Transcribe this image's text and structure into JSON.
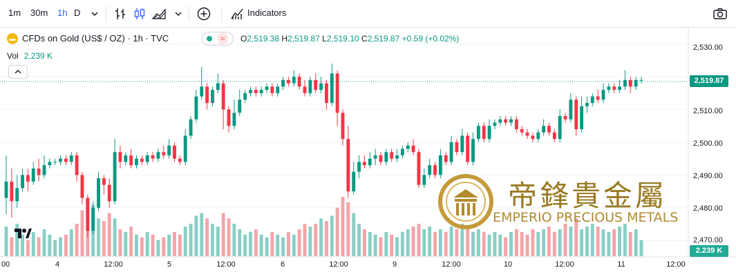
{
  "toolbar": {
    "intervals": [
      "1m",
      "30m",
      "1h",
      "D"
    ],
    "active_interval": "1h",
    "indicators_label": "Indicators"
  },
  "legend": {
    "title": "CFDs on Gold (US$ / OZ) · 1h · TVC",
    "open_key": "O",
    "open": "2,519.38",
    "high_key": "H",
    "high": "2,519.87",
    "low_key": "L",
    "low": "2,519.10",
    "close_key": "C",
    "close": "2,519.87",
    "change": "+0.59 (+0.02%)"
  },
  "volume": {
    "label": "Vol",
    "value": "2.239 K"
  },
  "price_axis": [
    "2,530.00",
    "2,520.00",
    "2,510.00",
    "2,500.00",
    "2,490.00",
    "2,480.00",
    "2,470.00"
  ],
  "current_price": "2,519.87",
  "current_volume": "2.239 K",
  "time_axis": [
    "00",
    "4",
    "12:00",
    "5",
    "12:00",
    "6",
    "12:00",
    "9",
    "12:00",
    "10",
    "12:00",
    "11",
    "12:00"
  ],
  "watermark": {
    "chinese": "帝鋒貴金屬",
    "english": "EMPERIO PRECIOUS METALS"
  },
  "colors": {
    "up": "#089981",
    "down": "#f23645",
    "vol_up": "#89cfc6",
    "vol_down": "#f3a5a9",
    "accent": "#2962ff"
  },
  "chart_data": {
    "type": "candlestick",
    "y_range": [
      2465,
      2535
    ],
    "candles": [
      [
        2483,
        2488,
        2478,
        2496
      ],
      [
        2488,
        2482,
        2477,
        2492
      ],
      [
        2482,
        2486,
        2480,
        2490
      ],
      [
        2486,
        2490,
        2485,
        2492
      ],
      [
        2490,
        2488,
        2485,
        2492
      ],
      [
        2488,
        2492,
        2487,
        2494
      ],
      [
        2492,
        2490,
        2488,
        2495
      ],
      [
        2490,
        2493,
        2489,
        2496
      ],
      [
        2493,
        2494,
        2492,
        2495
      ],
      [
        2494,
        2494,
        2493,
        2495
      ],
      [
        2494,
        2495,
        2493,
        2496
      ],
      [
        2495,
        2494,
        2493,
        2496
      ],
      [
        2494,
        2496,
        2493,
        2497
      ],
      [
        2496,
        2490,
        2488,
        2497
      ],
      [
        2490,
        2483,
        2481,
        2491
      ],
      [
        2483,
        2473,
        2471,
        2484
      ],
      [
        2473,
        2480,
        2472,
        2482
      ],
      [
        2480,
        2489,
        2479,
        2491
      ],
      [
        2489,
        2487,
        2484,
        2490
      ],
      [
        2487,
        2482,
        2480,
        2489
      ],
      [
        2482,
        2497,
        2481,
        2501
      ],
      [
        2497,
        2494,
        2492,
        2499
      ],
      [
        2494,
        2496,
        2493,
        2497
      ],
      [
        2496,
        2493,
        2492,
        2498
      ],
      [
        2493,
        2495,
        2492,
        2496
      ],
      [
        2495,
        2494,
        2493,
        2496
      ],
      [
        2494,
        2496,
        2493,
        2497
      ],
      [
        2496,
        2495,
        2494,
        2497
      ],
      [
        2495,
        2497,
        2494,
        2498
      ],
      [
        2497,
        2496,
        2495,
        2499
      ],
      [
        2496,
        2499,
        2495,
        2501
      ],
      [
        2499,
        2495,
        2494,
        2500
      ],
      [
        2495,
        2494,
        2493,
        2496
      ],
      [
        2494,
        2502,
        2493,
        2504
      ],
      [
        2502,
        2507,
        2501,
        2508
      ],
      [
        2507,
        2514,
        2506,
        2516
      ],
      [
        2514,
        2517,
        2513,
        2523
      ],
      [
        2517,
        2512,
        2510,
        2518
      ],
      [
        2512,
        2516,
        2511,
        2517
      ],
      [
        2516,
        2518,
        2515,
        2521
      ],
      [
        2518,
        2510,
        2504,
        2519
      ],
      [
        2510,
        2505,
        2503,
        2511
      ],
      [
        2505,
        2509,
        2504,
        2513
      ],
      [
        2509,
        2513,
        2508,
        2516
      ],
      [
        2513,
        2515,
        2512,
        2516
      ],
      [
        2515,
        2516,
        2514,
        2517
      ],
      [
        2516,
        2515,
        2514,
        2517
      ],
      [
        2515,
        2516,
        2514,
        2517
      ],
      [
        2516,
        2517,
        2515,
        2518
      ],
      [
        2517,
        2515,
        2514,
        2518
      ],
      [
        2515,
        2517,
        2514,
        2518
      ],
      [
        2517,
        2519,
        2516,
        2520
      ],
      [
        2519,
        2518,
        2517,
        2520
      ],
      [
        2518,
        2520,
        2517,
        2522
      ],
      [
        2520,
        2517,
        2516,
        2521
      ],
      [
        2517,
        2515,
        2514,
        2519
      ],
      [
        2515,
        2519,
        2514,
        2520
      ],
      [
        2519,
        2516,
        2515,
        2521
      ],
      [
        2516,
        2518,
        2515,
        2520
      ],
      [
        2518,
        2512,
        2510,
        2519
      ],
      [
        2512,
        2521,
        2511,
        2524
      ],
      [
        2521,
        2509,
        2505,
        2522
      ],
      [
        2509,
        2501,
        2499,
        2510
      ],
      [
        2501,
        2485,
        2483,
        2505
      ],
      [
        2485,
        2491,
        2484,
        2494
      ],
      [
        2491,
        2494,
        2489,
        2496
      ],
      [
        2494,
        2493,
        2492,
        2496
      ],
      [
        2493,
        2495,
        2492,
        2497
      ],
      [
        2495,
        2496,
        2493,
        2498
      ],
      [
        2496,
        2494,
        2493,
        2497
      ],
      [
        2494,
        2497,
        2493,
        2498
      ],
      [
        2497,
        2495,
        2494,
        2498
      ],
      [
        2495,
        2496,
        2494,
        2498
      ],
      [
        2496,
        2498,
        2495,
        2499
      ],
      [
        2498,
        2499,
        2497,
        2500
      ],
      [
        2499,
        2497,
        2496,
        2501
      ],
      [
        2497,
        2487,
        2486,
        2498
      ],
      [
        2487,
        2490,
        2486,
        2492
      ],
      [
        2490,
        2493,
        2489,
        2495
      ],
      [
        2493,
        2490,
        2489,
        2494
      ],
      [
        2490,
        2496,
        2489,
        2498
      ],
      [
        2496,
        2494,
        2493,
        2497
      ],
      [
        2494,
        2500,
        2493,
        2502
      ],
      [
        2500,
        2497,
        2496,
        2501
      ],
      [
        2497,
        2502,
        2496,
        2504
      ],
      [
        2502,
        2494,
        2493,
        2503
      ],
      [
        2494,
        2501,
        2493,
        2503
      ],
      [
        2501,
        2505,
        2500,
        2506
      ],
      [
        2505,
        2501,
        2500,
        2506
      ],
      [
        2501,
        2505,
        2500,
        2507
      ],
      [
        2505,
        2506,
        2504,
        2507
      ],
      [
        2506,
        2507,
        2505,
        2508
      ],
      [
        2507,
        2506,
        2505,
        2508
      ],
      [
        2506,
        2507,
        2505,
        2508
      ],
      [
        2507,
        2504,
        2503,
        2508
      ],
      [
        2504,
        2503,
        2502,
        2505
      ],
      [
        2503,
        2502,
        2501,
        2504
      ],
      [
        2502,
        2501,
        2500,
        2503
      ],
      [
        2501,
        2503,
        2500,
        2504
      ],
      [
        2503,
        2505,
        2502,
        2507
      ],
      [
        2505,
        2503,
        2502,
        2506
      ],
      [
        2503,
        2501,
        2500,
        2504
      ],
      [
        2501,
        2508,
        2500,
        2510
      ],
      [
        2508,
        2507,
        2506,
        2509
      ],
      [
        2507,
        2513,
        2506,
        2515
      ],
      [
        2513,
        2504,
        2502,
        2514
      ],
      [
        2504,
        2511,
        2503,
        2514
      ],
      [
        2511,
        2512,
        2509,
        2514
      ],
      [
        2512,
        2514,
        2511,
        2515
      ],
      [
        2514,
        2513,
        2512,
        2516
      ],
      [
        2513,
        2516,
        2512,
        2518
      ],
      [
        2516,
        2517,
        2515,
        2518
      ],
      [
        2517,
        2516,
        2515,
        2518
      ],
      [
        2516,
        2517,
        2515,
        2519
      ],
      [
        2517,
        2519,
        2516,
        2522
      ],
      [
        2519,
        2517,
        2515,
        2520
      ],
      [
        2517,
        2519,
        2516,
        2520
      ],
      [
        2519,
        2519,
        2518,
        2520
      ]
    ],
    "volumes": [
      0.55,
      0.35,
      0.6,
      0.4,
      0.3,
      0.45,
      0.35,
      0.5,
      0.4,
      0.3,
      0.35,
      0.4,
      0.5,
      0.6,
      0.85,
      1.0,
      0.95,
      0.7,
      0.65,
      0.8,
      0.7,
      0.5,
      0.45,
      0.55,
      0.4,
      0.35,
      0.45,
      0.4,
      0.3,
      0.35,
      0.4,
      0.45,
      0.4,
      0.55,
      0.6,
      0.75,
      0.8,
      0.7,
      0.6,
      0.55,
      0.8,
      0.7,
      0.6,
      0.5,
      0.4,
      0.45,
      0.5,
      0.4,
      0.35,
      0.45,
      0.4,
      0.35,
      0.45,
      0.4,
      0.5,
      0.6,
      0.55,
      0.6,
      0.7,
      0.65,
      0.75,
      0.9,
      1.1,
      1.0,
      0.8,
      0.6,
      0.5,
      0.45,
      0.4,
      0.35,
      0.45,
      0.4,
      0.35,
      0.45,
      0.5,
      0.55,
      0.6,
      0.5,
      0.55,
      0.45,
      0.5,
      0.45,
      0.55,
      0.5,
      0.6,
      0.55,
      0.45,
      0.5,
      0.45,
      0.4,
      0.45,
      0.4,
      0.35,
      0.45,
      0.5,
      0.45,
      0.4,
      0.5,
      0.45,
      0.5,
      0.55,
      0.45,
      0.5,
      0.6,
      0.55,
      0.7,
      0.5,
      0.55,
      0.6,
      0.55,
      0.5,
      0.45,
      0.5,
      0.55,
      0.6,
      0.45,
      0.5,
      0.3
    ]
  }
}
